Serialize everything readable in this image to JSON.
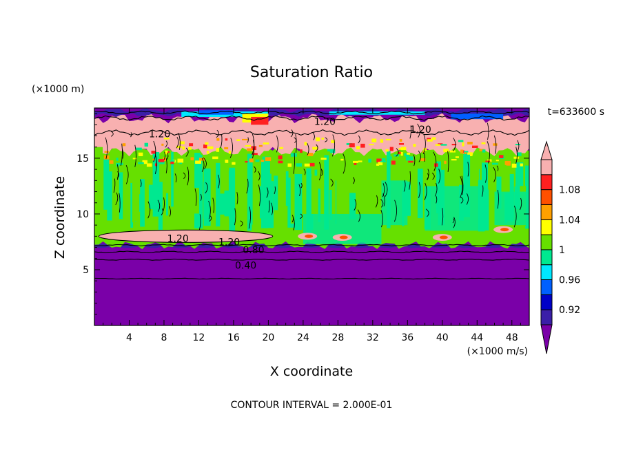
{
  "chart_data": {
    "type": "heatmap",
    "title": "Saturation Ratio",
    "xlabel": "X coordinate",
    "ylabel": "Z coordinate",
    "x_unit": "(×1000 m/s)",
    "y_unit": "(×1000 m)",
    "time_label": "t=633600 s",
    "footer": "CONTOUR INTERVAL = 2.000E-01",
    "xlim": [
      0,
      50
    ],
    "ylim": [
      0,
      19.5
    ],
    "x_ticks": [
      "4",
      "8",
      "12",
      "16",
      "20",
      "24",
      "28",
      "32",
      "36",
      "40",
      "44",
      "48"
    ],
    "x_tick_values": [
      4,
      8,
      12,
      16,
      20,
      24,
      28,
      32,
      36,
      40,
      44,
      48
    ],
    "y_ticks": [
      "5",
      "10",
      "15"
    ],
    "y_tick_values": [
      5,
      10,
      15
    ],
    "colorbar": {
      "levels": [
        0.92,
        0.94,
        0.96,
        0.98,
        1.0,
        1.02,
        1.04,
        1.06,
        1.08,
        1.1
      ],
      "labels": [
        "0.92",
        "0.96",
        "1",
        "1.04",
        "1.08"
      ],
      "label_values": [
        0.92,
        0.96,
        1.0,
        1.04,
        1.08
      ],
      "colors": [
        "#7a00a8",
        "#3a1fa8",
        "#0000c8",
        "#0060ff",
        "#00e8ff",
        "#00e890",
        "#66e000",
        "#ffff00",
        "#ffa000",
        "#ff5000",
        "#ff2020",
        "#f8b0b0"
      ],
      "extend": "both"
    },
    "contour_labels": [
      {
        "text": "1.20",
        "x": 26.5,
        "y": 18.3
      },
      {
        "text": "1.20",
        "x": 37.5,
        "y": 17.6
      },
      {
        "text": "1.20",
        "x": 7.5,
        "y": 17.2
      },
      {
        "text": "1.20",
        "x": 9.6,
        "y": 7.8
      },
      {
        "text": "1.20",
        "x": 15.5,
        "y": 7.5
      },
      {
        "text": "0.80",
        "x": 18.3,
        "y": 6.8
      },
      {
        "text": "0.40",
        "x": 17.4,
        "y": 5.4
      }
    ]
  }
}
